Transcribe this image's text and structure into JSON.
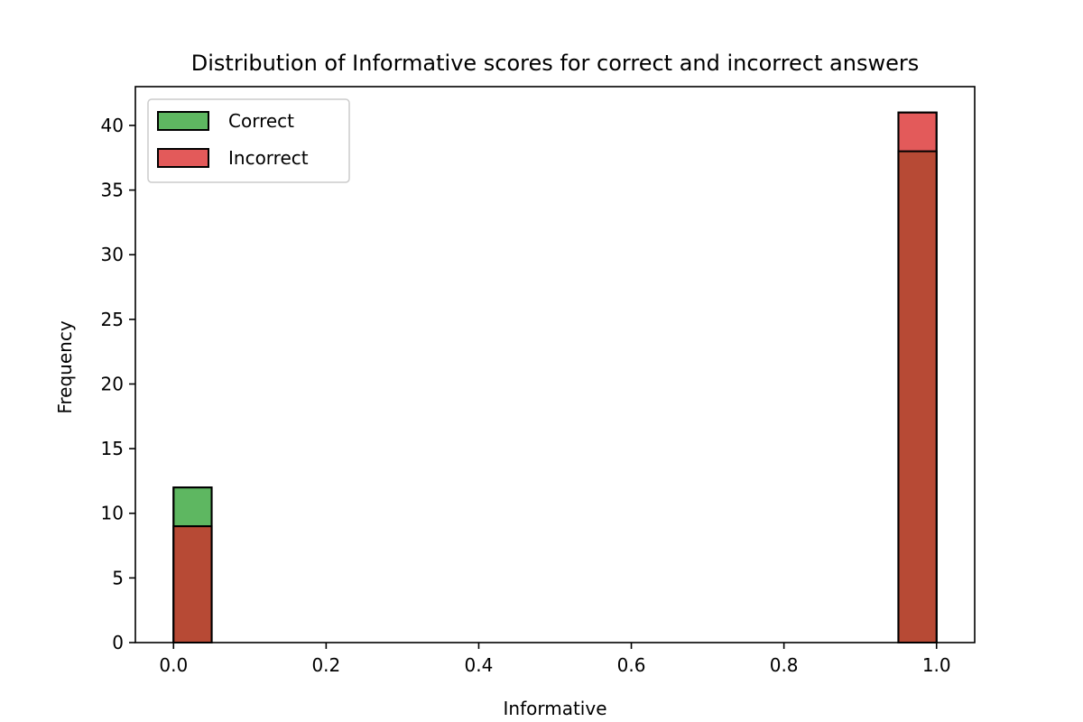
{
  "chart_data": {
    "type": "bar",
    "title": "Distribution of Informative scores for correct and incorrect answers",
    "xlabel": "Informative",
    "ylabel": "Frequency",
    "xlim": [
      -0.05,
      1.05
    ],
    "ylim": [
      0,
      43
    ],
    "x_ticks": [
      "0.0",
      "0.2",
      "0.4",
      "0.6",
      "0.8",
      "1.0"
    ],
    "x_tick_values": [
      0.0,
      0.2,
      0.4,
      0.6,
      0.8,
      1.0
    ],
    "y_ticks": [
      "0",
      "5",
      "10",
      "15",
      "20",
      "25",
      "30",
      "35",
      "40"
    ],
    "y_tick_values": [
      0,
      5,
      10,
      15,
      20,
      25,
      30,
      35,
      40
    ],
    "bins": [
      [
        0.0,
        0.05
      ],
      [
        0.95,
        1.0
      ]
    ],
    "series": [
      {
        "name": "Correct",
        "color": "#4caf50",
        "values": [
          12,
          38
        ]
      },
      {
        "name": "Incorrect",
        "color": "#e04848",
        "values": [
          9,
          41
        ]
      }
    ],
    "overlap_color": "#b74a35",
    "legend_position": "top-left",
    "grid": false
  }
}
